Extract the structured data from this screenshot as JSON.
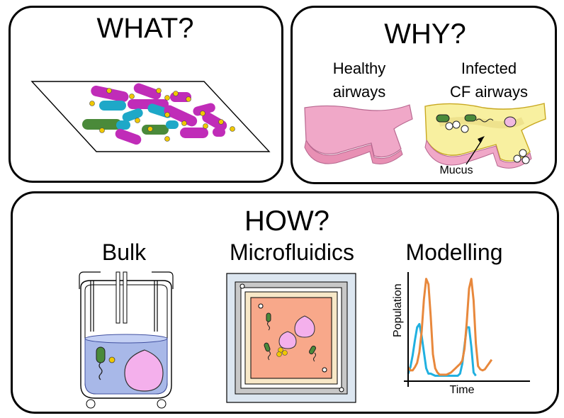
{
  "what": {
    "title": "WHAT?"
  },
  "why": {
    "title": "WHY?",
    "healthy_label": "Healthy\nairways",
    "infected_label": "Infected\nCF airways",
    "mucus_label": "Mucus"
  },
  "how": {
    "title": "HOW?",
    "bulk_label": "Bulk",
    "microfluidics_label": "Microfluidics",
    "modelling_label": "Modelling",
    "chart_ylabel": "Population",
    "chart_xlabel": "Time"
  },
  "colors": {
    "magenta_bacteria": "#c02cb8",
    "cyan_bacteria": "#1ea8c8",
    "green_bacteria": "#4a8a3a",
    "yellow_particles": "#f0c800",
    "airway_pink": "#f0a8c8",
    "mucus_yellow": "#f8f0a0",
    "liquid_blue": "#a8b8e8",
    "chip_orange": "#f8a88a",
    "series_orange": "#e8883c",
    "series_cyan": "#20b0e0"
  },
  "chart_data": {
    "type": "line",
    "xlabel": "Time",
    "ylabel": "Population",
    "series": [
      {
        "color": "#20b0e0",
        "x": [
          0,
          3,
          6,
          9,
          12,
          15,
          18,
          21,
          24,
          27,
          30,
          33,
          36,
          39,
          42,
          45,
          48,
          51,
          54,
          57,
          60,
          63,
          66,
          69,
          72,
          75,
          78,
          81,
          84,
          87,
          90,
          93,
          96,
          99,
          102,
          105,
          108,
          111,
          114,
          117,
          120,
          123,
          126,
          129,
          132,
          135,
          138,
          141,
          144,
          147,
          150,
          153,
          156,
          159,
          162
        ],
        "y": [
          0.07,
          0.13,
          0.24,
          0.38,
          0.5,
          0.53,
          0.42,
          0.27,
          0.12,
          0.07,
          0.07,
          0.06,
          0.05,
          0.05,
          0.05,
          0.05,
          0.05,
          0.05,
          0.05,
          0.05,
          0.05,
          0.05,
          0.05,
          0.07,
          0.16,
          0.33,
          0.5,
          0.5,
          0.32,
          0.08,
          0.05,
          null,
          null,
          null,
          null,
          null,
          null,
          null,
          null,
          null,
          null,
          null,
          null,
          null,
          null,
          null,
          null,
          null,
          null,
          null,
          null,
          null,
          null,
          null,
          null
        ]
      },
      {
        "color": "#e8883c",
        "x": [
          0,
          3,
          6,
          9,
          12,
          15,
          18,
          21,
          24,
          27,
          30,
          33,
          36,
          39,
          42,
          45,
          48,
          51,
          54,
          57,
          60,
          63,
          66,
          69,
          72,
          75,
          78,
          81,
          84,
          87,
          90,
          93,
          96,
          99,
          102,
          105,
          108,
          111,
          114,
          117,
          120,
          123,
          126,
          129,
          132,
          135,
          138,
          141,
          144,
          147,
          150,
          153,
          156,
          159,
          162
        ],
        "y": [
          0.13,
          0.1,
          0.1,
          0.13,
          0.17,
          0.27,
          0.46,
          0.76,
          0.95,
          0.9,
          0.6,
          0.25,
          0.12,
          0.08,
          0.06,
          0.06,
          0.06,
          0.06,
          0.07,
          0.08,
          0.1,
          0.12,
          0.14,
          0.16,
          0.19,
          0.3,
          0.55,
          0.86,
          0.95,
          0.75,
          0.35,
          0.14,
          0.11,
          0.1,
          0.11,
          0.14,
          0.17,
          0.2,
          null,
          null,
          null,
          null,
          null,
          null,
          null,
          null,
          null,
          null,
          null,
          null,
          null,
          null,
          null,
          null,
          null
        ]
      }
    ]
  }
}
